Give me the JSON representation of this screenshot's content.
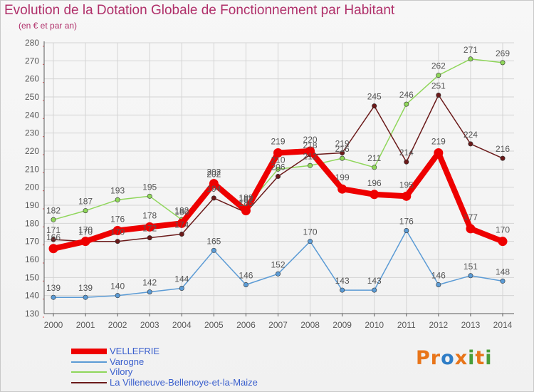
{
  "title": "Evolution de la Dotation Globale de Fonctionnement par Habitant",
  "subtitle": "(en € et par an)",
  "logo_text": "Proxiti",
  "colors": {
    "title": "#b0306a",
    "axis": "#5a5a5a",
    "grid": "#d4d4d4",
    "legend_text": "#3a5fcd",
    "logo": [
      "#e8751a",
      "#e8751a",
      "#2f7dc6",
      "#e8751a",
      "#4a9e3a",
      "#e8751a",
      "#4a9e3a"
    ]
  },
  "chart_data": {
    "type": "line",
    "title": "Evolution de la Dotation Globale de Fonctionnement par Habitant",
    "subtitle": "(en € et par an)",
    "xlabel": "",
    "ylabel": "",
    "x": [
      2000,
      2001,
      2002,
      2003,
      2004,
      2005,
      2006,
      2007,
      2008,
      2009,
      2010,
      2011,
      2012,
      2013,
      2014
    ],
    "ylim": [
      130,
      280
    ],
    "yticks": [
      130,
      140,
      150,
      160,
      170,
      180,
      190,
      200,
      210,
      220,
      230,
      240,
      250,
      260,
      270,
      280
    ],
    "grid": true,
    "legend_position": "bottom-left",
    "series": [
      {
        "name": "VELLEFRIE",
        "color": "#ee0000",
        "values": [
          166,
          170,
          176,
          178,
          180,
          202,
          187,
          219,
          220,
          199,
          196,
          195,
          219,
          177,
          170
        ]
      },
      {
        "name": "Varogne",
        "color": "#5b9bd5",
        "values": [
          139,
          139,
          140,
          142,
          144,
          165,
          146,
          152,
          170,
          143,
          143,
          176,
          146,
          151,
          148
        ]
      },
      {
        "name": "Vilory",
        "color": "#8fd65a",
        "values": [
          182,
          187,
          193,
          195,
          182,
          202,
          189,
          210,
          212,
          216,
          211,
          246,
          262,
          271,
          269
        ]
      },
      {
        "name": "La Villeneuve-Bellenoye-et-la-Maize",
        "color": "#6b1a1a",
        "values": [
          171,
          170,
          170,
          172,
          174,
          194,
          186,
          206,
          218,
          219,
          245,
          214,
          251,
          224,
          216
        ]
      }
    ]
  }
}
